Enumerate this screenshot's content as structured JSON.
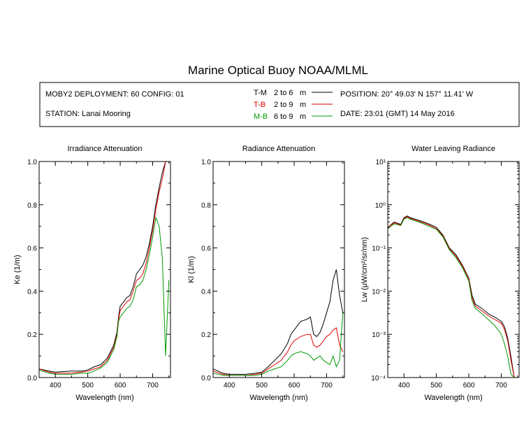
{
  "title": "Marine Optical Buoy NOAA/MLML",
  "header": {
    "deployment": "MOBY2 DEPLOYMENT: 60 CONFIG: 01",
    "station": "STATION: Lanai Mooring",
    "position": "POSITION: 20° 49.03' N   157° 11.41' W",
    "date": "DATE: 23:01 (GMT) 14 May 2016",
    "legend": [
      {
        "code": "T-M",
        "range": "2 to 6",
        "unit": "m",
        "color": "#000000"
      },
      {
        "code": "T-B",
        "range": "2 to 9",
        "unit": "m",
        "color": "#dd0000"
      },
      {
        "code": "M-B",
        "range": "6 to 9",
        "unit": "m",
        "color": "#009900"
      }
    ]
  },
  "chart_data": [
    {
      "type": "line",
      "title": "Irradiance Attenuation",
      "xlabel": "Wavelength (nm)",
      "ylabel": "Ke  (1/m)",
      "xlim": [
        350,
        755
      ],
      "ylim": [
        0,
        1
      ],
      "xticks": [
        "400",
        "500",
        "600",
        "700"
      ],
      "yticks": [
        "0.0",
        "0.2",
        "0.4",
        "0.6",
        "0.8",
        "1.0"
      ],
      "grid": false,
      "x": [
        350,
        380,
        400,
        450,
        480,
        500,
        520,
        540,
        560,
        580,
        590,
        595,
        600,
        610,
        620,
        630,
        640,
        650,
        660,
        670,
        680,
        690,
        700,
        710,
        720,
        730,
        740,
        750
      ],
      "series": [
        {
          "color": "#000000",
          "values": [
            0.04,
            0.03,
            0.025,
            0.03,
            0.03,
            0.035,
            0.05,
            0.06,
            0.09,
            0.15,
            0.21,
            0.28,
            0.33,
            0.35,
            0.37,
            0.38,
            0.42,
            0.48,
            0.5,
            0.52,
            0.56,
            0.62,
            0.7,
            0.8,
            0.88,
            0.95,
            1.0,
            1.0
          ]
        },
        {
          "color": "#dd0000",
          "values": [
            0.04,
            0.025,
            0.02,
            0.02,
            0.025,
            0.03,
            0.04,
            0.05,
            0.08,
            0.14,
            0.2,
            0.27,
            0.31,
            0.33,
            0.35,
            0.36,
            0.4,
            0.45,
            0.46,
            0.48,
            0.53,
            0.6,
            0.68,
            0.78,
            0.86,
            0.92,
            1.0,
            1.0
          ]
        },
        {
          "color": "#009900",
          "values": [
            0.035,
            0.02,
            0.015,
            0.015,
            0.02,
            0.02,
            0.03,
            0.045,
            0.07,
            0.13,
            0.19,
            0.26,
            0.28,
            0.3,
            0.32,
            0.33,
            0.36,
            0.42,
            0.43,
            0.45,
            0.5,
            0.57,
            0.65,
            0.74,
            0.7,
            0.55,
            0.1,
            0.45
          ]
        }
      ]
    },
    {
      "type": "line",
      "title": "Radiance Attenuation",
      "xlabel": "Wavelength (nm)",
      "ylabel": "Kl  (1/m)",
      "xlim": [
        350,
        755
      ],
      "ylim": [
        0,
        1
      ],
      "xticks": [
        "400",
        "500",
        "600",
        "700"
      ],
      "yticks": [
        "0.0",
        "0.2",
        "0.4",
        "0.6",
        "0.8",
        "1.0"
      ],
      "grid": false,
      "x": [
        350,
        380,
        400,
        450,
        480,
        500,
        520,
        540,
        560,
        580,
        590,
        600,
        620,
        640,
        650,
        660,
        670,
        680,
        690,
        700,
        710,
        720,
        730,
        740,
        750
      ],
      "series": [
        {
          "color": "#000000",
          "values": [
            0.04,
            0.02,
            0.015,
            0.015,
            0.02,
            0.025,
            0.05,
            0.08,
            0.11,
            0.16,
            0.2,
            0.22,
            0.26,
            0.27,
            0.28,
            0.2,
            0.19,
            0.21,
            0.25,
            0.3,
            0.35,
            0.45,
            0.5,
            0.38,
            0.3
          ]
        },
        {
          "color": "#dd0000",
          "values": [
            0.03,
            0.015,
            0.01,
            0.01,
            0.015,
            0.02,
            0.04,
            0.06,
            0.08,
            0.12,
            0.15,
            0.17,
            0.19,
            0.2,
            0.2,
            0.15,
            0.14,
            0.15,
            0.17,
            0.19,
            0.2,
            0.22,
            0.23,
            0.15,
            0.12
          ]
        },
        {
          "color": "#009900",
          "values": [
            0.02,
            0.01,
            0.01,
            0.01,
            0.01,
            0.015,
            0.03,
            0.04,
            0.05,
            0.08,
            0.1,
            0.11,
            0.12,
            0.11,
            0.1,
            0.08,
            0.09,
            0.1,
            0.08,
            0.07,
            0.06,
            0.1,
            0.05,
            0.08,
            0.3
          ]
        }
      ]
    },
    {
      "type": "line",
      "title": "Water Leaving Radiance",
      "xlabel": "Wavelength (nm)",
      "ylabel": "Lw  (μW/cm²/sr/nm)",
      "xlim": [
        350,
        755
      ],
      "ylim": [
        0.0001,
        10
      ],
      "yscale": "log",
      "xticks": [
        "400",
        "500",
        "600",
        "700"
      ],
      "yticks": [
        "10⁻⁴",
        "10⁻³",
        "10⁻²",
        "10⁻¹",
        "10⁰",
        "10¹"
      ],
      "grid": false,
      "x": [
        350,
        370,
        390,
        400,
        410,
        420,
        440,
        460,
        480,
        500,
        520,
        540,
        560,
        580,
        600,
        610,
        620,
        640,
        660,
        680,
        700,
        710,
        720,
        730,
        740
      ],
      "series": [
        {
          "color": "#000000",
          "values": [
            0.3,
            0.4,
            0.35,
            0.5,
            0.55,
            0.5,
            0.45,
            0.4,
            0.35,
            0.3,
            0.2,
            0.1,
            0.07,
            0.04,
            0.02,
            0.008,
            0.005,
            0.004,
            0.003,
            0.0025,
            0.002,
            0.0015,
            0.0008,
            0.0003,
            0.0001
          ]
        },
        {
          "color": "#dd0000",
          "values": [
            0.3,
            0.38,
            0.34,
            0.48,
            0.53,
            0.48,
            0.43,
            0.38,
            0.33,
            0.28,
            0.19,
            0.095,
            0.065,
            0.038,
            0.019,
            0.007,
            0.0045,
            0.0035,
            0.0027,
            0.0022,
            0.0018,
            0.0013,
            0.0007,
            0.00025,
            0.0001
          ]
        },
        {
          "color": "#009900",
          "values": [
            0.28,
            0.36,
            0.33,
            0.46,
            0.5,
            0.46,
            0.41,
            0.36,
            0.31,
            0.27,
            0.18,
            0.09,
            0.06,
            0.035,
            0.017,
            0.006,
            0.004,
            0.003,
            0.0022,
            0.0016,
            0.001,
            0.0006,
            0.0003,
            0.00012,
            0.0001
          ]
        }
      ]
    }
  ]
}
